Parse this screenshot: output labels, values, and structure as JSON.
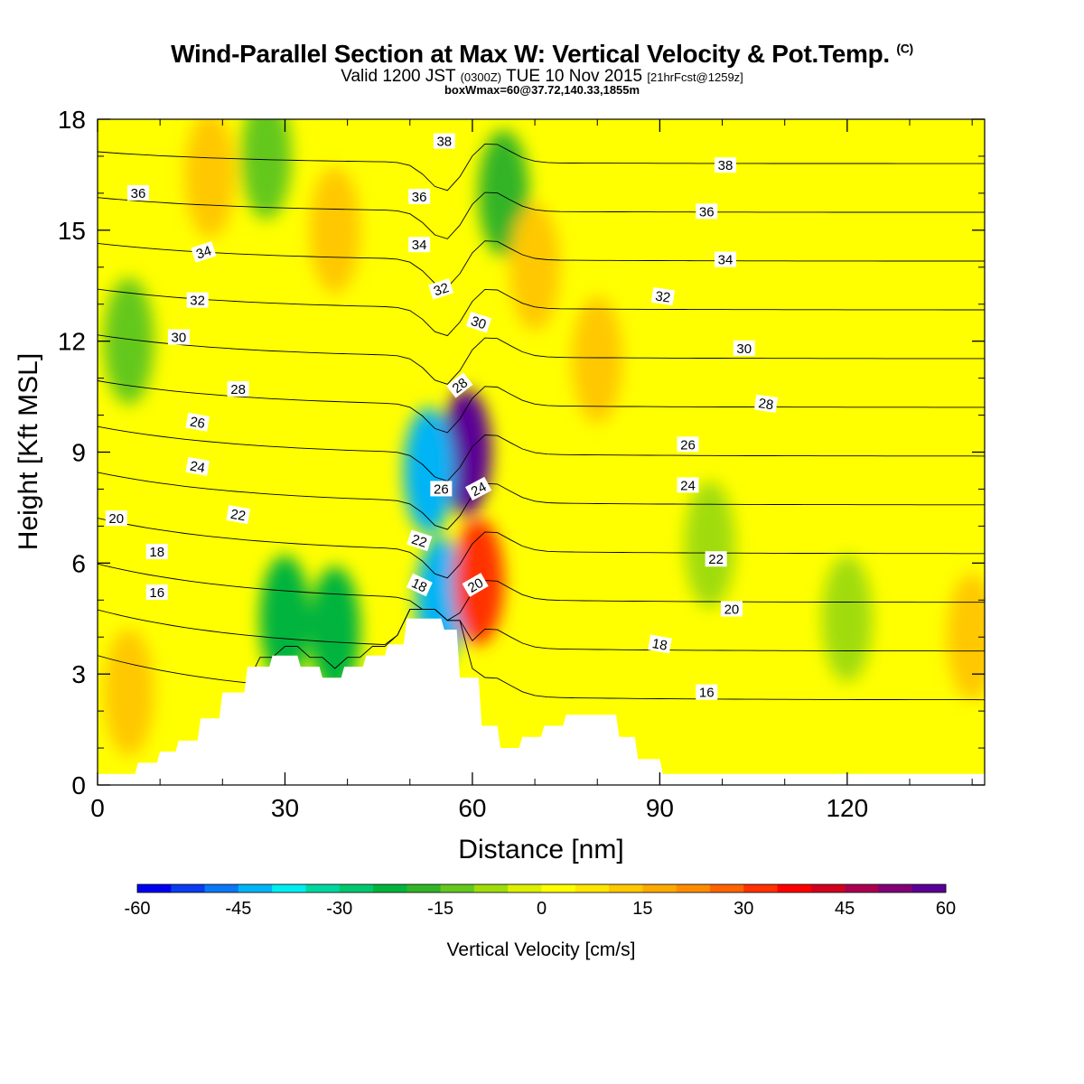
{
  "header": {
    "title_main": "Wind-Parallel Section at Max W: Vertical Velocity & Pot.Temp.",
    "title_mark": "(C)",
    "valid_a": "Valid 1200 JST",
    "valid_b": "(0300Z)",
    "valid_c": "TUE 10 Nov 2015",
    "valid_d": "[21hrFcst@1259z]",
    "box": "boxWmax=60@37.72,140.33,1855m"
  },
  "chart_data": {
    "type": "heatmap",
    "title": "Wind-Parallel Section at Max W: Vertical Velocity & Pot.Temp.",
    "xlabel": "Distance [nm]",
    "ylabel": "Height [Kft MSL]",
    "xlim": [
      0,
      142
    ],
    "ylim": [
      0,
      18
    ],
    "xticks": [
      0,
      30,
      60,
      90,
      120
    ],
    "yticks": [
      0,
      3,
      6,
      9,
      12,
      15,
      18
    ],
    "colorbar": {
      "label": "Vertical Velocity [cm/s]",
      "range": [
        -60,
        60
      ],
      "ticks": [
        -60,
        -45,
        -30,
        -15,
        0,
        15,
        30,
        45,
        60
      ],
      "colors": [
        "#0000f0",
        "#0a3cf0",
        "#0a78f5",
        "#00b4f5",
        "#00eef0",
        "#00d7a0",
        "#00c86e",
        "#00b43c",
        "#32b428",
        "#64c81e",
        "#a0dc0a",
        "#dcf000",
        "#ffff00",
        "#ffe600",
        "#ffc800",
        "#ffaa00",
        "#ff8c00",
        "#ff6400",
        "#ff3200",
        "#ff0000",
        "#d2001e",
        "#aa0050",
        "#820078",
        "#5a0096"
      ]
    },
    "terrain": {
      "x": [
        0,
        6,
        6.5,
        9.5,
        10,
        12.5,
        13,
        16,
        16.5,
        19.5,
        20,
        23.5,
        24,
        27.5,
        28,
        32,
        32.5,
        35.5,
        36,
        39,
        39.5,
        42.5,
        43,
        46,
        46.5,
        49,
        49.5,
        55,
        55.5,
        57.5,
        58,
        61,
        61.5,
        64,
        64.5,
        67.5,
        68,
        71,
        71.5,
        74.5,
        75,
        83,
        83.5,
        86,
        86.5,
        90,
        90.5,
        142
      ],
      "y": [
        0.3,
        0.3,
        0.6,
        0.6,
        0.9,
        0.9,
        1.2,
        1.2,
        1.8,
        1.8,
        2.5,
        2.5,
        3.2,
        3.2,
        3.5,
        3.5,
        3.2,
        3.2,
        2.9,
        2.9,
        3.2,
        3.2,
        3.5,
        3.5,
        3.8,
        3.8,
        4.5,
        4.5,
        4.2,
        4.2,
        2.9,
        2.9,
        1.6,
        1.6,
        1.0,
        1.0,
        1.3,
        1.3,
        1.6,
        1.6,
        1.9,
        1.9,
        1.3,
        1.3,
        0.7,
        0.7,
        0.3,
        0.3
      ]
    },
    "velocity_features": [
      {
        "x": 59,
        "y": 9.0,
        "value": 60
      },
      {
        "x": 53,
        "y": 8.5,
        "value": -42
      },
      {
        "x": 55,
        "y": 5.0,
        "value": -45
      },
      {
        "x": 61,
        "y": 5.5,
        "value": 30
      },
      {
        "x": 30,
        "y": 4.5,
        "value": -25
      },
      {
        "x": 38,
        "y": 4.2,
        "value": -22
      },
      {
        "x": 65,
        "y": 16.0,
        "value": -18
      },
      {
        "x": 70,
        "y": 14.0,
        "value": 14
      },
      {
        "x": 80,
        "y": 11.5,
        "value": 14
      },
      {
        "x": 18,
        "y": 16.5,
        "value": 14
      },
      {
        "x": 38,
        "y": 15.0,
        "value": 14
      },
      {
        "x": 27,
        "y": 17.0,
        "value": -12
      },
      {
        "x": 5,
        "y": 12.0,
        "value": -12
      },
      {
        "x": 98,
        "y": 6.5,
        "value": -10
      },
      {
        "x": 120,
        "y": 4.5,
        "value": -8
      },
      {
        "x": 5,
        "y": 2.5,
        "value": 12
      },
      {
        "x": 140,
        "y": 4.0,
        "value": 14
      }
    ],
    "theta_contours": {
      "levels": [
        16,
        18,
        20,
        22,
        24,
        26,
        28,
        30,
        32,
        34,
        36,
        38
      ],
      "labels": [
        {
          "text": "38",
          "x": 55.5,
          "y": 17.4,
          "rot": 0
        },
        {
          "text": "38",
          "x": 100.5,
          "y": 16.75,
          "rot": 0
        },
        {
          "text": "36",
          "x": 6.5,
          "y": 16.0,
          "rot": 0
        },
        {
          "text": "36",
          "x": 51.5,
          "y": 15.9,
          "rot": 0
        },
        {
          "text": "36",
          "x": 97.5,
          "y": 15.5,
          "rot": 0
        },
        {
          "text": "34",
          "x": 17,
          "y": 14.4,
          "rot": -18
        },
        {
          "text": "34",
          "x": 51.5,
          "y": 14.6,
          "rot": 0
        },
        {
          "text": "34",
          "x": 100.5,
          "y": 14.2,
          "rot": 0
        },
        {
          "text": "32",
          "x": 16,
          "y": 13.1,
          "rot": 0
        },
        {
          "text": "32",
          "x": 55,
          "y": 13.4,
          "rot": -18
        },
        {
          "text": "32",
          "x": 90.5,
          "y": 13.2,
          "rot": 8
        },
        {
          "text": "30",
          "x": 13,
          "y": 12.1,
          "rot": 0
        },
        {
          "text": "30",
          "x": 61,
          "y": 12.5,
          "rot": 18
        },
        {
          "text": "30",
          "x": 103.5,
          "y": 11.8,
          "rot": 0
        },
        {
          "text": "28",
          "x": 22.5,
          "y": 10.7,
          "rot": 0
        },
        {
          "text": "28",
          "x": 58,
          "y": 10.8,
          "rot": -38
        },
        {
          "text": "28",
          "x": 107,
          "y": 10.3,
          "rot": 8
        },
        {
          "text": "26",
          "x": 16,
          "y": 9.8,
          "rot": 10
        },
        {
          "text": "26",
          "x": 55,
          "y": 8.0,
          "rot": 0
        },
        {
          "text": "26",
          "x": 94.5,
          "y": 9.2,
          "rot": 0
        },
        {
          "text": "24",
          "x": 16,
          "y": 8.6,
          "rot": 10
        },
        {
          "text": "24",
          "x": 61,
          "y": 8.0,
          "rot": -28
        },
        {
          "text": "24",
          "x": 94.5,
          "y": 8.1,
          "rot": 0
        },
        {
          "text": "22",
          "x": 22.5,
          "y": 7.3,
          "rot": 10
        },
        {
          "text": "22",
          "x": 51.5,
          "y": 6.6,
          "rot": 18
        },
        {
          "text": "22",
          "x": 99,
          "y": 6.1,
          "rot": 0
        },
        {
          "text": "20",
          "x": 3,
          "y": 7.2,
          "rot": 0
        },
        {
          "text": "20",
          "x": 60.5,
          "y": 5.4,
          "rot": -30
        },
        {
          "text": "20",
          "x": 101.5,
          "y": 4.75,
          "rot": 0
        },
        {
          "text": "18",
          "x": 9.5,
          "y": 6.3,
          "rot": 0
        },
        {
          "text": "18",
          "x": 51.5,
          "y": 5.4,
          "rot": 25
        },
        {
          "text": "18",
          "x": 90,
          "y": 3.8,
          "rot": 10
        },
        {
          "text": "16",
          "x": 9.5,
          "y": 5.2,
          "rot": 0
        },
        {
          "text": "16",
          "x": 97.5,
          "y": 2.5,
          "rot": 0
        }
      ]
    }
  }
}
